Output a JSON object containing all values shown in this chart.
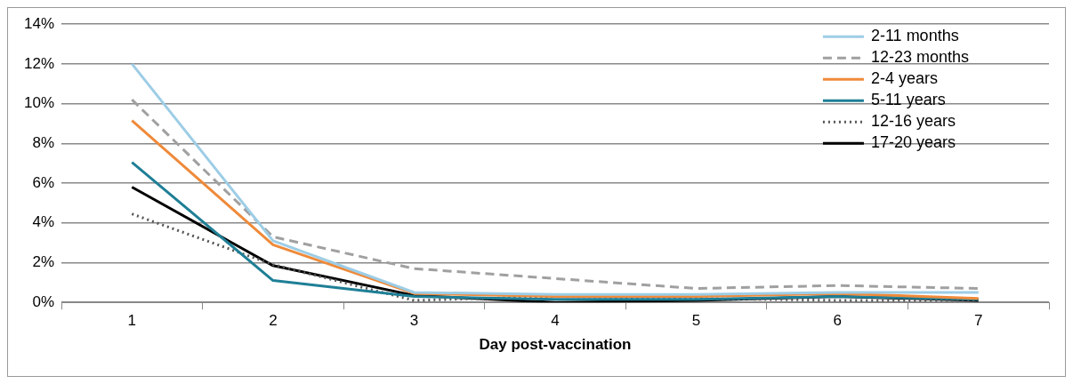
{
  "chart_data": {
    "type": "line",
    "xlabel": "Day post-vaccination",
    "categories": [
      "1",
      "2",
      "3",
      "4",
      "5",
      "6",
      "7"
    ],
    "ylim": [
      0,
      14
    ],
    "yticks": [
      {
        "value": 0,
        "label": "0%"
      },
      {
        "value": 2,
        "label": "2%"
      },
      {
        "value": 4,
        "label": "4%"
      },
      {
        "value": 6,
        "label": "6%"
      },
      {
        "value": 8,
        "label": "8%"
      },
      {
        "value": 10,
        "label": "10%"
      },
      {
        "value": 12,
        "label": "12%"
      },
      {
        "value": 14,
        "label": "14%"
      }
    ],
    "grid": "y",
    "legend": "top right",
    "marker": "none",
    "series": [
      {
        "name": "2-11 months",
        "color": "#9dcde6",
        "line_style": "solid",
        "values": [
          12.0,
          3.1,
          0.5,
          0.4,
          0.4,
          0.5,
          0.5
        ]
      },
      {
        "name": "12-23 months",
        "color": "#a0a0a0",
        "line_style": "dashed",
        "values": [
          10.2,
          3.3,
          1.7,
          1.2,
          0.7,
          0.85,
          0.7
        ]
      },
      {
        "name": "2-4 years",
        "color": "#ef8a3a",
        "line_style": "solid",
        "values": [
          9.15,
          2.9,
          0.45,
          0.3,
          0.3,
          0.45,
          0.2
        ]
      },
      {
        "name": "5-11 years",
        "color": "#1f7f96",
        "line_style": "solid",
        "values": [
          7.05,
          1.1,
          0.3,
          0.15,
          0.15,
          0.3,
          0.15
        ]
      },
      {
        "name": "12-16 years",
        "color": "#555555",
        "line_style": "dotted",
        "values": [
          4.45,
          1.9,
          0.1,
          0.3,
          0.2,
          0.1,
          0.1
        ]
      },
      {
        "name": "17-20 years",
        "color": "#000000",
        "line_style": "solid",
        "values": [
          5.8,
          1.85,
          0.35,
          0.0,
          0.1,
          0.3,
          0.1
        ]
      }
    ]
  }
}
